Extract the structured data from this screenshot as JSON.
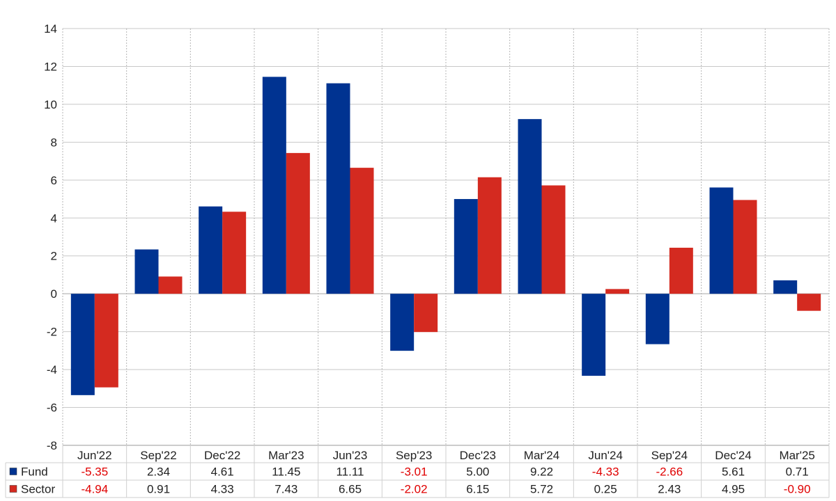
{
  "chart_data": {
    "type": "bar",
    "title": "",
    "xlabel": "",
    "ylabel": "",
    "ylim": [
      -8,
      14
    ],
    "yticks": [
      -8,
      -6,
      -4,
      -2,
      0,
      2,
      4,
      6,
      8,
      10,
      12,
      14
    ],
    "grid": true,
    "legend": "bottom-left table",
    "categories": [
      "Jun'22",
      "Sep'22",
      "Dec'22",
      "Mar'23",
      "Jun'23",
      "Sep'23",
      "Dec'23",
      "Mar'24",
      "Jun'24",
      "Sep'24",
      "Dec'24",
      "Mar'25"
    ],
    "series": [
      {
        "name": "Fund",
        "color": "#003391",
        "values": [
          -5.35,
          2.34,
          4.61,
          11.45,
          11.11,
          -3.01,
          5.0,
          9.22,
          -4.33,
          -2.66,
          5.61,
          0.71
        ],
        "labels": [
          "-5.35",
          "2.34",
          "4.61",
          "11.45",
          "11.11",
          "-3.01",
          "5.00",
          "9.22",
          "-4.33",
          "-2.66",
          "5.61",
          "0.71"
        ]
      },
      {
        "name": "Sector",
        "color": "#d42a20",
        "values": [
          -4.94,
          0.91,
          4.33,
          7.43,
          6.65,
          -2.02,
          6.15,
          5.72,
          0.25,
          2.43,
          4.95,
          -0.9
        ],
        "labels": [
          "-4.94",
          "0.91",
          "4.33",
          "7.43",
          "6.65",
          "-2.02",
          "6.15",
          "5.72",
          "0.25",
          "2.43",
          "4.95",
          "-0.90"
        ]
      }
    ],
    "negative_label_color": "#e00000",
    "positive_label_color": "#222222"
  }
}
